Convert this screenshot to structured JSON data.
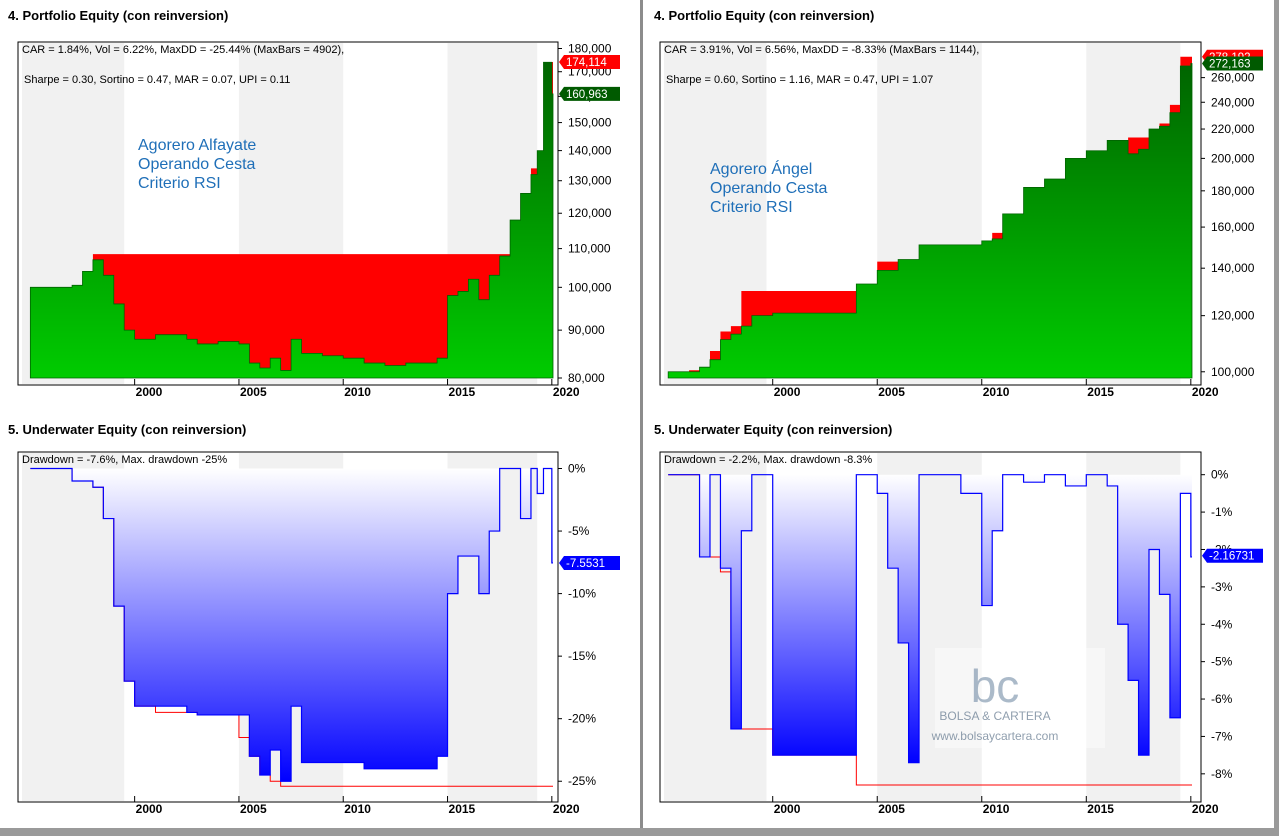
{
  "panels": {
    "left_top_title": "4. Portfolio Equity (con reinversion)",
    "left_bottom_title": "5. Underwater Equity (con reinversion)",
    "right_top_title": "4. Portfolio Equity (con reinversion)",
    "right_bottom_title": "5. Underwater Equity (con reinversion)"
  },
  "colors": {
    "equity_green_dark": "#006400",
    "equity_green_light": "#00cc00",
    "drawdown_red": "#ff0000",
    "underwater_blue": "#0000ff",
    "annotation_blue": "#1f6fb8",
    "label_green_bg": "#005a00",
    "label_red_bg": "#ff0000",
    "label_blue_bg": "#0000ff"
  },
  "watermark": {
    "logo": "bc",
    "name": "BOLSA & CARTERA",
    "url": "www.bolsaycartera.com"
  },
  "chart_data": [
    {
      "id": "left_equity",
      "type": "area",
      "stats_line1": "CAR = 1.84%, Vol = 6.22%, MaxDD = -25.44% (MaxBars = 4902),",
      "stats_line2": "Sharpe = 0.30, Sortino = 0.47, MAR = 0.07, UPI = 0.11",
      "annotation": [
        "Agorero Alfayate",
        "Operando Cesta",
        "Criterio RSI"
      ],
      "x_ticks": [
        "2000",
        "2005",
        "2010",
        "2015",
        "2020"
      ],
      "y_ticks": [
        "80,000",
        "90,000",
        "100,000",
        "110,000",
        "120,000",
        "130,000",
        "140,000",
        "150,000",
        "160,000",
        "170,000",
        "180,000"
      ],
      "ylim": [
        80000,
        182000
      ],
      "y_scale": "log",
      "last_value_label": "160,963",
      "peak_value_label": "174,114",
      "x": [
        1995.0,
        1996.5,
        1997.0,
        1997.5,
        1998.0,
        1998.5,
        1999.0,
        1999.5,
        2000.0,
        2001.0,
        2002.5,
        2003.0,
        2004.0,
        2005.0,
        2005.5,
        2006.0,
        2006.5,
        2007.0,
        2007.5,
        2008.0,
        2009.0,
        2010.0,
        2011.0,
        2012.0,
        2013.0,
        2014.0,
        2014.5,
        2015.0,
        2015.5,
        2016.0,
        2016.5,
        2017.0,
        2017.5,
        2018.0,
        2018.5,
        2019.0,
        2019.3,
        2019.6,
        2020.0
      ],
      "equity": [
        100000,
        100000,
        100500,
        104000,
        107000,
        103000,
        96000,
        90000,
        88000,
        89000,
        88000,
        87000,
        87500,
        87000,
        83000,
        82000,
        84000,
        81500,
        88000,
        85000,
        84500,
        84000,
        83000,
        82500,
        83000,
        83000,
        84000,
        98000,
        99000,
        102000,
        97000,
        103000,
        108000,
        118000,
        126000,
        132000,
        140000,
        174000,
        160963
      ],
      "peak": [
        100000,
        100000,
        100500,
        104000,
        108500,
        108500,
        108500,
        108500,
        108500,
        108500,
        108500,
        108500,
        108500,
        108500,
        108500,
        108500,
        108500,
        108500,
        108500,
        108500,
        108500,
        108500,
        108500,
        108500,
        108500,
        108500,
        108500,
        108500,
        108500,
        108500,
        108500,
        108500,
        108500,
        118000,
        126000,
        134000,
        140000,
        174114,
        174114
      ]
    },
    {
      "id": "left_underwater",
      "type": "area",
      "stats_line1": "Drawdown = -7.6%, Max. drawdown -25%",
      "x_ticks": [
        "2000",
        "2005",
        "2010",
        "2015",
        "2020"
      ],
      "y_ticks": [
        "0%",
        "-5%",
        "-10%",
        "-15%",
        "-20%",
        "-25%"
      ],
      "ylim": [
        -26.5,
        1
      ],
      "last_value_label": "-7.5531",
      "x": [
        1995.0,
        1996.5,
        1997.0,
        1997.5,
        1998.0,
        1998.5,
        1999.0,
        1999.5,
        2000.0,
        2001.0,
        2002.5,
        2003.0,
        2004.0,
        2005.0,
        2005.5,
        2006.0,
        2006.5,
        2007.0,
        2007.5,
        2008.0,
        2009.0,
        2010.0,
        2011.0,
        2012.0,
        2013.0,
        2014.0,
        2014.5,
        2015.0,
        2015.5,
        2016.0,
        2016.5,
        2017.0,
        2017.5,
        2018.0,
        2018.5,
        2019.0,
        2019.3,
        2019.6,
        2020.0
      ],
      "values": [
        0,
        0,
        -1,
        -1,
        -1.5,
        -4,
        -11,
        -17,
        -19,
        -19,
        -19.5,
        -19.7,
        -19.7,
        -19.7,
        -23,
        -24.5,
        -22.5,
        -25,
        -19,
        -23.5,
        -23.5,
        -23.5,
        -24,
        -24,
        -24,
        -24,
        -23,
        -10,
        -7,
        -7,
        -10,
        -5,
        0,
        0,
        -4,
        0,
        -2,
        0,
        -7.55
      ],
      "max_dd_line": [
        0,
        0,
        -1,
        -1,
        -1.5,
        -4,
        -11,
        -17,
        -19,
        -19.5,
        -19.5,
        -19.7,
        -19.7,
        -21.5,
        -23,
        -24.5,
        -25,
        -25.4,
        -25.4,
        -25.4,
        -25.4,
        -25.4,
        -25.4,
        -25.4,
        -25.4,
        -25.4,
        -25.4,
        -25.4,
        -25.4,
        -25.4,
        -25.4,
        -25.4,
        -25.4,
        -25.4,
        -25.4,
        -25.4,
        -25.4,
        -25.4,
        -25.4
      ]
    },
    {
      "id": "right_equity",
      "type": "area",
      "stats_line1": "CAR = 3.91%, Vol = 6.56%, MaxDD = -8.33% (MaxBars = 1144),",
      "stats_line2": "Sharpe = 0.60, Sortino = 1.16, MAR = 0.47, UPI = 1.07",
      "annotation": [
        "Agorero Ángel",
        "Operando Cesta",
        "Criterio RSI"
      ],
      "x_ticks": [
        "2000",
        "2005",
        "2010",
        "2015",
        "2020"
      ],
      "y_ticks": [
        "100,000",
        "120,000",
        "140,000",
        "160,000",
        "180,000",
        "200,000",
        "220,000",
        "240,000",
        "260,000"
      ],
      "ylim": [
        98000,
        290000
      ],
      "y_scale": "log",
      "last_value_label": "272,163",
      "peak_value_label": "278,192",
      "x": [
        1995.0,
        1996.0,
        1996.5,
        1997.0,
        1997.5,
        1998.0,
        1998.5,
        1999.0,
        2000.0,
        2002.0,
        2003.5,
        2004.0,
        2005.0,
        2006.0,
        2007.0,
        2008.0,
        2009.0,
        2010.0,
        2010.5,
        2011.0,
        2012.0,
        2013.0,
        2014.0,
        2015.0,
        2016.0,
        2017.0,
        2017.5,
        2018.0,
        2018.5,
        2019.0,
        2019.5,
        2020.0
      ],
      "equity": [
        100000,
        100000,
        101500,
        104000,
        111000,
        113000,
        116000,
        120000,
        121000,
        121000,
        121000,
        133000,
        139000,
        144000,
        151000,
        151000,
        151000,
        153000,
        154000,
        167000,
        182000,
        187000,
        200000,
        205000,
        212000,
        203000,
        206000,
        220000,
        222000,
        232000,
        270000,
        272163
      ],
      "peak": [
        100000,
        100500,
        101500,
        107000,
        114000,
        116000,
        130000,
        130000,
        130000,
        130000,
        130000,
        133000,
        143000,
        144000,
        151000,
        151000,
        151000,
        153000,
        157000,
        167000,
        182000,
        187000,
        200000,
        205000,
        212000,
        214000,
        214000,
        220000,
        224000,
        238000,
        278192,
        278192
      ]
    },
    {
      "id": "right_underwater",
      "type": "area",
      "stats_line1": "Drawdown = -2.2%, Max. drawdown -8.3%",
      "x_ticks": [
        "2000",
        "2005",
        "2010",
        "2015",
        "2020"
      ],
      "y_ticks": [
        "0%",
        "-1%",
        "-2%",
        "-3%",
        "-4%",
        "-5%",
        "-6%",
        "-7%",
        "-8%"
      ],
      "ylim": [
        -8.7,
        0.5
      ],
      "last_value_label": "-2.16731",
      "x": [
        1995.0,
        1996.0,
        1996.5,
        1997.0,
        1997.5,
        1998.0,
        1998.5,
        1999.0,
        2000.0,
        2002.0,
        2003.5,
        2004.0,
        2005.0,
        2005.5,
        2006.0,
        2006.5,
        2007.0,
        2008.0,
        2009.0,
        2010.0,
        2010.5,
        2011.0,
        2012.0,
        2013.0,
        2014.0,
        2015.0,
        2016.0,
        2016.5,
        2017.0,
        2017.5,
        2018.0,
        2018.5,
        2019.0,
        2019.5,
        2020.0
      ],
      "values": [
        0,
        0,
        -2.2,
        0,
        -2.5,
        -6.8,
        -1.5,
        0,
        -7.5,
        -7.5,
        -7.5,
        0,
        -0.5,
        -2.5,
        -4.5,
        -7.7,
        0,
        0,
        -0.5,
        -3.5,
        -1.5,
        0,
        -0.2,
        0,
        -0.3,
        0,
        -0.3,
        -4,
        -5.5,
        -7.5,
        -2,
        -3.2,
        -6.5,
        -0.5,
        -2.2
      ],
      "max_dd_line": [
        0,
        0,
        -2.2,
        -2.2,
        -2.6,
        -6.8,
        -6.8,
        -6.8,
        -7.5,
        -7.5,
        -7.5,
        -8.3,
        -8.3,
        -8.3,
        -8.3,
        -8.3,
        -8.3,
        -8.3,
        -8.3,
        -8.3,
        -8.3,
        -8.3,
        -8.3,
        -8.3,
        -8.3,
        -8.3,
        -8.3,
        -8.3,
        -8.3,
        -8.3,
        -8.3,
        -8.3,
        -8.3,
        -8.3,
        -8.3
      ]
    }
  ]
}
